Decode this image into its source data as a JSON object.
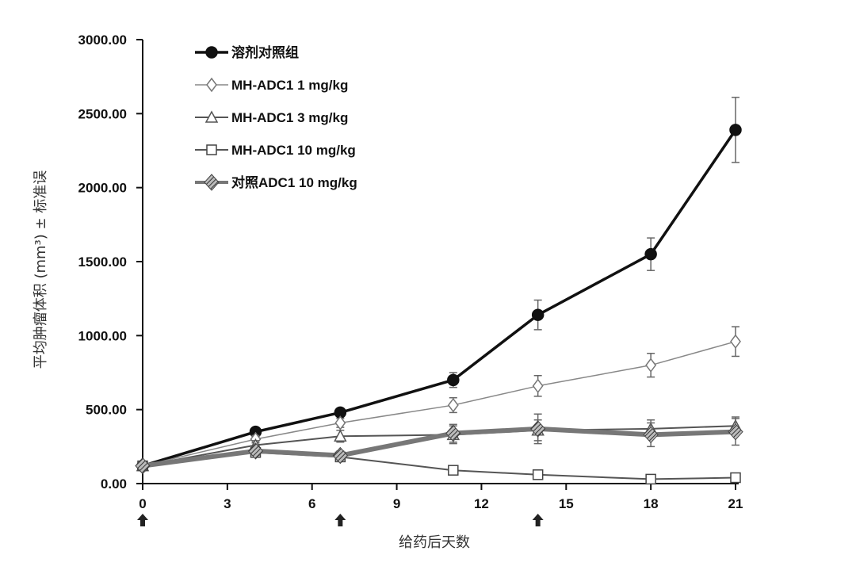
{
  "chart_data": {
    "type": "line",
    "xlabel": "给药后天数",
    "ylabel": "平均肿瘤体积 (mm³) ± 标准误",
    "xlim": [
      0,
      21
    ],
    "ylim": [
      0,
      3000
    ],
    "x_ticks": [
      "0",
      "3",
      "6",
      "9",
      "12",
      "15",
      "18",
      "21"
    ],
    "y_ticks": [
      "0.00",
      "500.00",
      "1000.00",
      "1500.00",
      "2000.00",
      "2500.00",
      "3000.00"
    ],
    "dosing_days": [
      0,
      7,
      14
    ],
    "grid": false,
    "legend_position": "top-left",
    "series": [
      {
        "name": "溶剂对照组",
        "marker": "filled-circle",
        "color": "#111111",
        "x": [
          0,
          4,
          7,
          11,
          14,
          18,
          21
        ],
        "values": [
          120,
          350,
          480,
          700,
          1140,
          1550,
          2390
        ],
        "errors": [
          0,
          20,
          25,
          50,
          100,
          110,
          220
        ]
      },
      {
        "name": "MH-ADC1 1 mg/kg",
        "marker": "open-diamond",
        "color": "#777777",
        "x": [
          0,
          4,
          7,
          11,
          14,
          18,
          21
        ],
        "values": [
          120,
          300,
          410,
          530,
          660,
          800,
          960
        ],
        "errors": [
          0,
          25,
          30,
          50,
          70,
          80,
          100
        ]
      },
      {
        "name": "MH-ADC1 3 mg/kg",
        "marker": "open-triangle",
        "color": "#555555",
        "x": [
          0,
          4,
          7,
          11,
          14,
          18,
          21
        ],
        "values": [
          120,
          260,
          320,
          330,
          360,
          370,
          390
        ],
        "errors": [
          0,
          30,
          40,
          60,
          70,
          60,
          60
        ]
      },
      {
        "name": "MH-ADC1 10 mg/kg",
        "marker": "open-square",
        "color": "#555555",
        "x": [
          0,
          4,
          7,
          11,
          14,
          18,
          21
        ],
        "values": [
          120,
          210,
          180,
          90,
          60,
          30,
          40
        ],
        "errors": [
          0,
          20,
          20,
          10,
          10,
          5,
          10
        ]
      },
      {
        "name": "对照ADC1 10 mg/kg",
        "marker": "hatched-diamond",
        "color": "#666666",
        "x": [
          0,
          4,
          7,
          11,
          14,
          18,
          21
        ],
        "values": [
          120,
          220,
          190,
          340,
          370,
          330,
          350
        ],
        "errors": [
          0,
          30,
          30,
          60,
          100,
          80,
          90
        ]
      }
    ]
  }
}
